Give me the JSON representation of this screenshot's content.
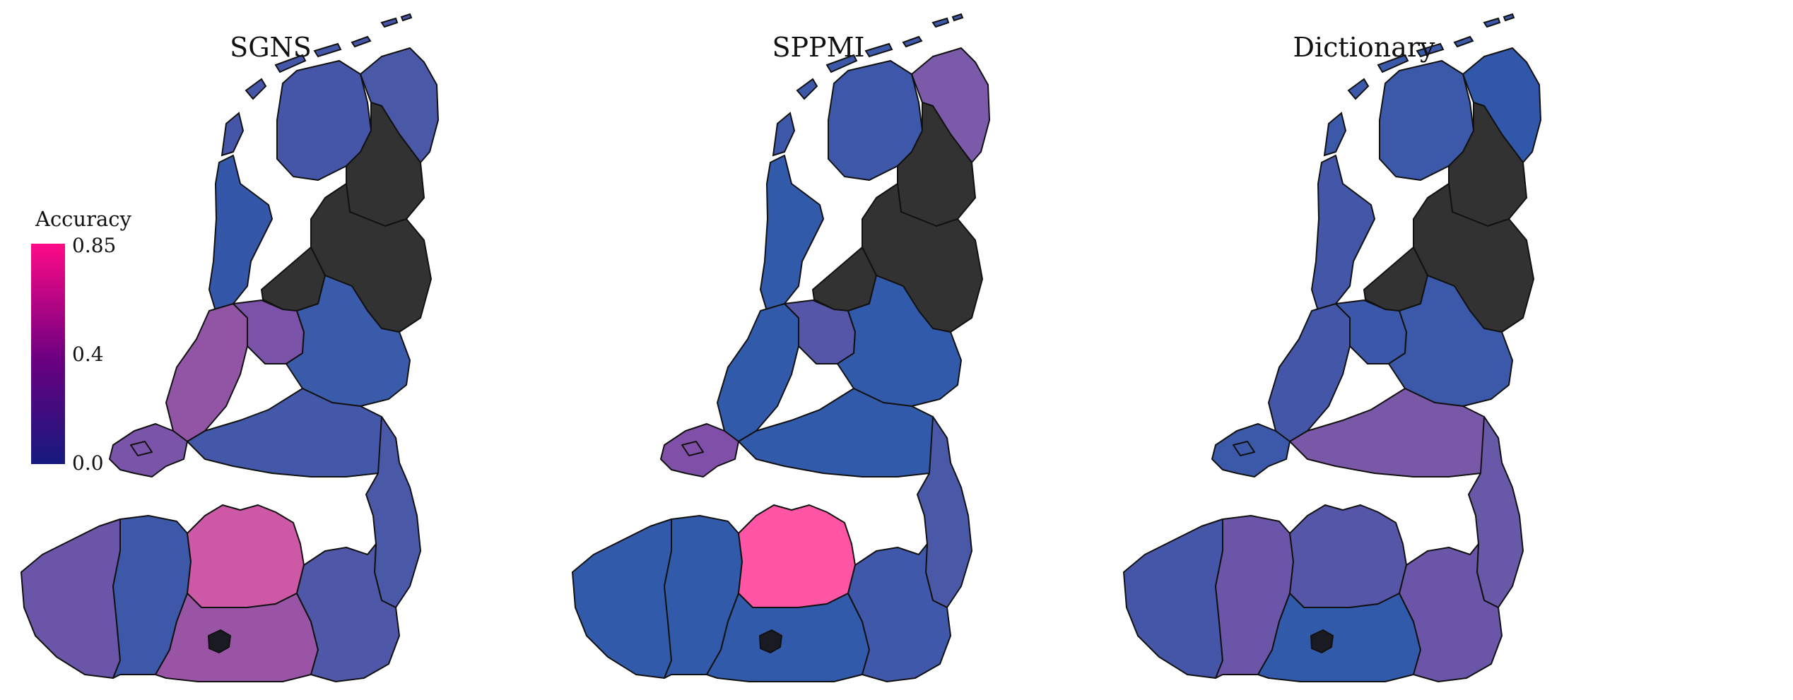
{
  "legend": {
    "title": "Accuracy",
    "ticks": [
      0.85,
      0.4,
      0.0
    ],
    "tick_labels": [
      "0.85",
      "0.4",
      "0.0"
    ],
    "color_low": "#151a7e",
    "color_mid": "#6a0080",
    "color_high": "#ff0a87"
  },
  "colors": {
    "no_data": "#323232",
    "brussels": "#1a1a22",
    "water": "#ffffff",
    "border": "#111111"
  },
  "region_names": [
    "fryslan",
    "groningen",
    "noord-holland",
    "utrecht",
    "zuid-holland",
    "gelderland",
    "noord-brabant",
    "zeeland",
    "limburg-nl",
    "west-vlaanderen",
    "oost-vlaanderen",
    "antwerpen",
    "vlaams-brabant",
    "limburg-be",
    "brussels",
    "flevoland",
    "overijssel",
    "drenthe"
  ],
  "maps": [
    {
      "title": "SGNS",
      "regions": {
        "fryslan": "#4556a8",
        "groningen": "#4a58a8",
        "noord-holland": "#3457aa",
        "utrecht": "#7a52a8",
        "zuid-holland": "#9254a4",
        "gelderland": "#3a5baa",
        "noord-brabant": "#4358a8",
        "zeeland": "#7a54a8",
        "limburg-nl": "#4a58a8",
        "west-vlaanderen": "#6a55a8",
        "oost-vlaanderen": "#3d58a9",
        "antwerpen": "#cc58a6",
        "vlaams-brabant": "#9a54a6",
        "limburg-be": "#4f58a8"
      }
    },
    {
      "title": "SPPMI",
      "regions": {
        "fryslan": "#3d58a9",
        "groningen": "#7b5aaa",
        "noord-holland": "#325aaa",
        "utrecht": "#5556a8",
        "zuid-holland": "#325aaa",
        "gelderland": "#325aaa",
        "noord-brabant": "#325aaa",
        "zeeland": "#8050a8",
        "limburg-nl": "#4a58a8",
        "west-vlaanderen": "#325aaa",
        "oost-vlaanderen": "#325aaa",
        "antwerpen": "#ff55a4",
        "vlaams-brabant": "#325aaa",
        "limburg-be": "#3f58a9"
      }
    },
    {
      "title": "Dictionary",
      "regions": {
        "fryslan": "#3b58a9",
        "groningen": "#3157aa",
        "noord-holland": "#4356a8",
        "utrecht": "#3a57a9",
        "zuid-holland": "#4356a8",
        "gelderland": "#3c58a9",
        "noord-brabant": "#7a58a8",
        "zeeland": "#3c58a9",
        "limburg-nl": "#6858a8",
        "west-vlaanderen": "#4556a8",
        "oost-vlaanderen": "#6a55a8",
        "antwerpen": "#5556a8",
        "vlaams-brabant": "#325aaa",
        "limburg-be": "#6a55a8"
      }
    }
  ]
}
